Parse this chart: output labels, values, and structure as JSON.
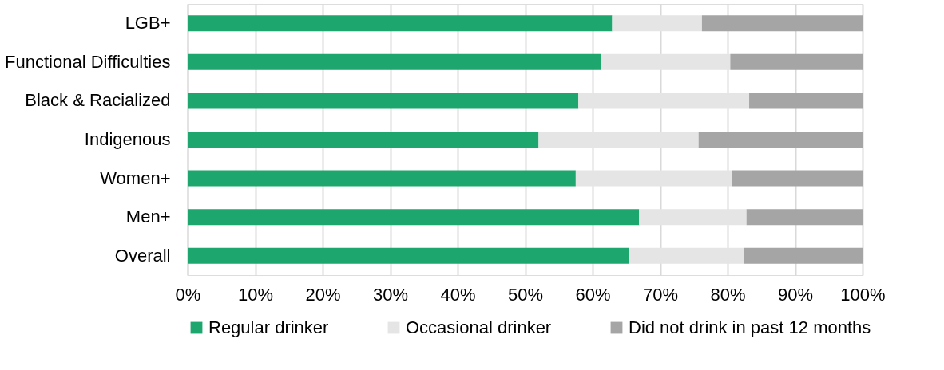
{
  "chart_data": {
    "type": "bar",
    "orientation": "horizontal",
    "stacked": true,
    "categories": [
      "LGB+",
      "Functional Difficulties",
      "Black & Racialized",
      "Indigenous",
      "Women+",
      "Men+",
      "Overall"
    ],
    "series": [
      {
        "name": "Regular drinker",
        "color": "#1ea66f",
        "values": [
          62.9,
          61.3,
          57.9,
          52.0,
          57.5,
          66.9,
          65.4
        ]
      },
      {
        "name": "Occasional drinker",
        "color": "#e5e5e5",
        "values": [
          13.3,
          19.1,
          25.3,
          23.7,
          23.2,
          15.9,
          17.0
        ]
      },
      {
        "name": "Did not drink in past 12 months",
        "color": "#a5a5a5",
        "values": [
          23.8,
          19.6,
          16.8,
          24.3,
          19.3,
          17.2,
          17.6
        ]
      }
    ],
    "xlim": [
      0,
      100
    ],
    "xticks": [
      {
        "value": 0,
        "label": "0%"
      },
      {
        "value": 10,
        "label": "10%"
      },
      {
        "value": 20,
        "label": "20%"
      },
      {
        "value": 30,
        "label": "30%"
      },
      {
        "value": 40,
        "label": "40%"
      },
      {
        "value": 50,
        "label": "50%"
      },
      {
        "value": 60,
        "label": "60%"
      },
      {
        "value": 70,
        "label": "70%"
      },
      {
        "value": 80,
        "label": "80%"
      },
      {
        "value": 90,
        "label": "90%"
      },
      {
        "value": 100,
        "label": "100%"
      }
    ],
    "grid": "x",
    "legend": "bottom"
  }
}
